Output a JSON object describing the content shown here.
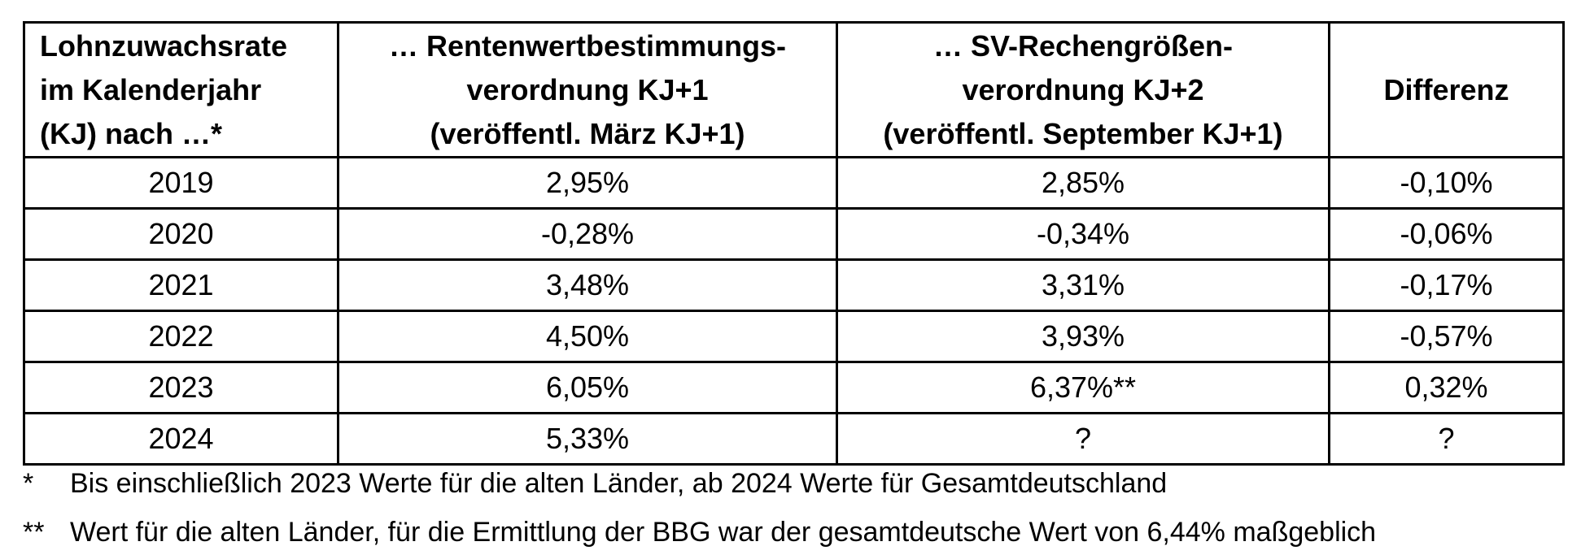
{
  "table": {
    "headers": [
      {
        "lines": [
          "Lohnzuwachsrate",
          "im Kalenderjahr",
          "(KJ) nach …*"
        ]
      },
      {
        "lines": [
          "… Rentenwertbestimmungs-",
          "verordnung KJ+1",
          "(veröffentl. März KJ+1)"
        ]
      },
      {
        "lines": [
          "… SV-Rechengrößen-",
          "verordnung KJ+2",
          "(veröffentl. September KJ+1)"
        ]
      },
      {
        "lines": [
          "Differenz"
        ]
      }
    ],
    "rows": [
      [
        "2019",
        "2,95%",
        "2,85%",
        "-0,10%"
      ],
      [
        "2020",
        "-0,28%",
        "-0,34%",
        "-0,06%"
      ],
      [
        "2021",
        "3,48%",
        "3,31%",
        "-0,17%"
      ],
      [
        "2022",
        "4,50%",
        "3,93%",
        "-0,57%"
      ],
      [
        "2023",
        "6,05%",
        "6,37%**",
        "0,32%"
      ],
      [
        "2024",
        "5,33%",
        "?",
        "?"
      ]
    ]
  },
  "footnotes": [
    {
      "mark": "*",
      "text": "Bis einschließlich 2023 Werte für die alten Länder, ab 2024 Werte für Gesamtdeutschland"
    },
    {
      "mark": "**",
      "text": "Wert für die alten Länder, für die Ermittlung der BBG war der gesamtdeutsche Wert von 6,44% maßgeblich"
    }
  ]
}
